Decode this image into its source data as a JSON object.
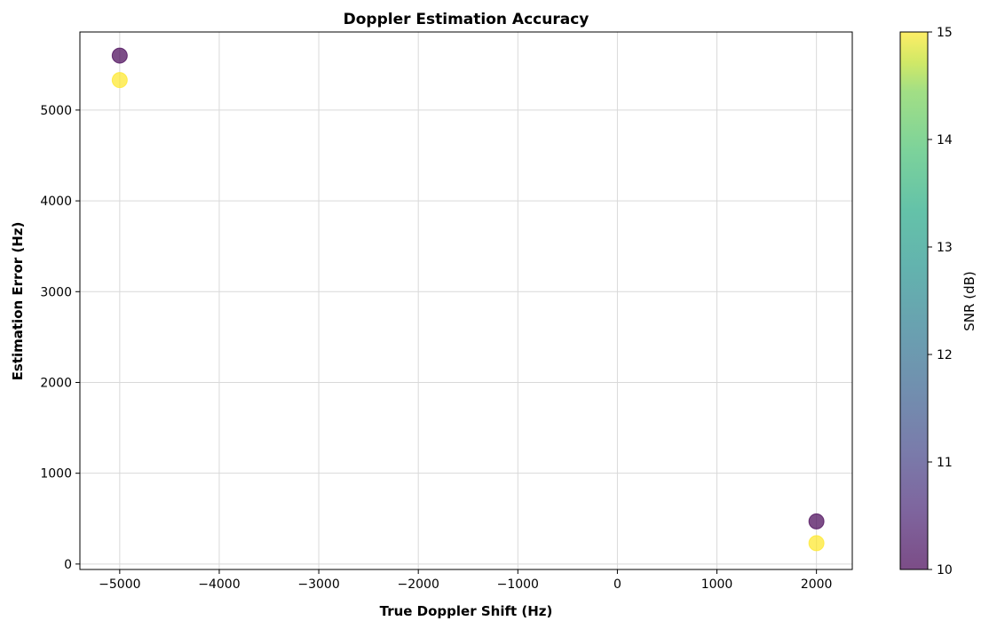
{
  "chart_data": {
    "type": "scatter",
    "title": "Doppler Estimation Accuracy",
    "xlabel": "True Doppler Shift (Hz)",
    "ylabel": "Estimation Error (Hz)",
    "xlim": [
      -5400,
      2360
    ],
    "ylim": [
      -60,
      5860
    ],
    "xticks": [
      -5000,
      -4000,
      -3000,
      -2000,
      -1000,
      0,
      1000,
      2000
    ],
    "xtick_labels": [
      "−5000",
      "−4000",
      "−3000",
      "−2000",
      "−1000",
      "0",
      "1000",
      "2000"
    ],
    "yticks": [
      0,
      1000,
      2000,
      3000,
      4000,
      5000
    ],
    "ytick_labels": [
      "0",
      "1000",
      "2000",
      "3000",
      "4000",
      "5000"
    ],
    "grid": true,
    "colormap": "viridis",
    "points": [
      {
        "x": -5000,
        "y": 5600,
        "snr": 10
      },
      {
        "x": -5000,
        "y": 5330,
        "snr": 15
      },
      {
        "x": 2000,
        "y": 470,
        "snr": 10
      },
      {
        "x": 2000,
        "y": 230,
        "snr": 15
      }
    ],
    "colorbar": {
      "label": "SNR (dB)",
      "min": 10,
      "max": 15,
      "ticks": [
        10,
        11,
        12,
        13,
        14,
        15
      ],
      "tick_labels": [
        "10",
        "11",
        "12",
        "13",
        "14",
        "15"
      ],
      "low_color": "#440154",
      "high_color": "#fde725"
    },
    "marker_alpha": 0.7
  }
}
